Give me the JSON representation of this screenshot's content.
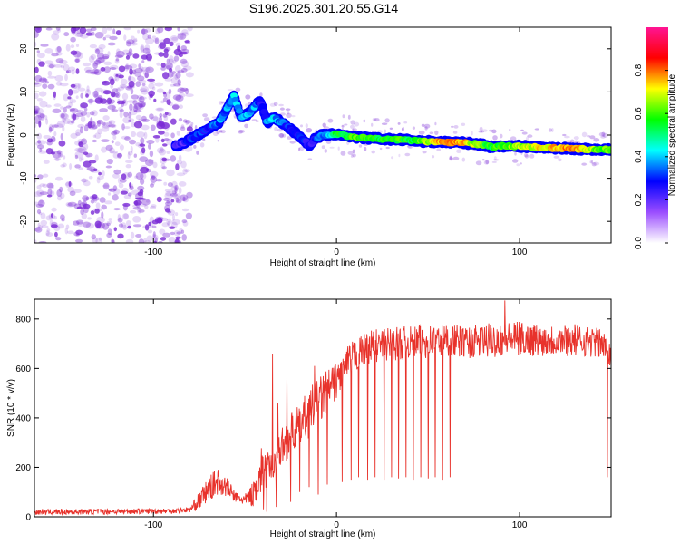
{
  "title": "S196.2025.301.20.55.G14",
  "colors": {
    "snr_line": "#e8322b",
    "ridge_outline": "#0000ff",
    "noise": "#7a2bd6",
    "axis": "#000000"
  },
  "chart_data": [
    {
      "type": "heatmap",
      "name": "spectrogram",
      "xlabel": "Height of straight line (km)",
      "ylabel": "Frequency (Hz)",
      "xlim": [
        -165,
        150
      ],
      "ylim": [
        -25,
        25
      ],
      "x_ticks": [
        -100,
        0,
        100
      ],
      "x_tick_labels": [
        "-100",
        "0",
        "100"
      ],
      "y_ticks": [
        -20,
        -10,
        0,
        10,
        20
      ],
      "y_tick_labels": [
        "-20",
        "-10",
        "0",
        "10",
        "20"
      ],
      "noise_region_x": [
        -165,
        -80
      ],
      "ridge": {
        "x": [
          -88,
          -82,
          -76,
          -70,
          -64,
          -60,
          -56,
          -52,
          -48,
          -44,
          -42,
          -40,
          -38,
          -34,
          -30,
          -27,
          -24,
          -21,
          -18,
          -15,
          -12,
          -8,
          -4,
          0,
          10,
          20,
          30,
          40,
          50,
          60,
          70,
          80,
          85,
          90,
          100,
          110,
          120,
          130,
          140,
          150
        ],
        "y": [
          -2.5,
          -1.5,
          0,
          1.5,
          3,
          6,
          9,
          4,
          5,
          7,
          8,
          6,
          3,
          4,
          3,
          2,
          1,
          0,
          -1,
          -2.5,
          -1,
          0,
          0,
          0.3,
          -0.5,
          -0.8,
          -1,
          -1.2,
          -1.5,
          -1.6,
          -1.8,
          -2.2,
          -2.8,
          -2.5,
          -2.6,
          -2.8,
          -3,
          -3.2,
          -3.3,
          -3.4
        ],
        "amplitude": [
          0.2,
          0.25,
          0.3,
          0.3,
          0.35,
          0.35,
          0.4,
          0.35,
          0.4,
          0.35,
          0.3,
          0.3,
          0.35,
          0.4,
          0.35,
          0.3,
          0.3,
          0.3,
          0.3,
          0.25,
          0.3,
          0.35,
          0.4,
          0.55,
          0.6,
          0.55,
          0.6,
          0.55,
          0.65,
          0.8,
          0.75,
          0.6,
          0.55,
          0.6,
          0.65,
          0.7,
          0.75,
          0.8,
          0.65,
          0.6
        ]
      }
    },
    {
      "type": "colorbar",
      "name": "amplitude-scale",
      "label": "Normalized spectral amplitude",
      "range": [
        0,
        1
      ],
      "ticks": [
        0.0,
        0.2,
        0.4,
        0.6,
        0.8
      ],
      "tick_labels": [
        "0.0",
        "0.2",
        "0.4",
        "0.6",
        "0.8"
      ],
      "stops": [
        "#ffffff",
        "#9b4dff",
        "#0000ff",
        "#00ffff",
        "#00ff00",
        "#ffff00",
        "#ff0000",
        "#ff1493"
      ]
    },
    {
      "type": "line",
      "name": "snr",
      "xlabel": "Height of straight line (km)",
      "ylabel": "SNR (10 * v/v)",
      "xlim": [
        -165,
        150
      ],
      "ylim": [
        0,
        880
      ],
      "x_ticks": [
        -100,
        0,
        100
      ],
      "x_tick_labels": [
        "-100",
        "0",
        "100"
      ],
      "y_ticks": [
        0,
        200,
        400,
        600,
        800
      ],
      "y_tick_labels": [
        "0",
        "200",
        "400",
        "600",
        "800"
      ],
      "envelope": {
        "x": [
          -165,
          -90,
          -80,
          -75,
          -70,
          -65,
          -60,
          -55,
          -50,
          -45,
          -42,
          -40,
          -38,
          -35,
          -33,
          -30,
          -28,
          -25,
          -20,
          -15,
          -10,
          -5,
          0,
          5,
          10,
          15,
          20,
          25,
          30,
          40,
          50,
          60,
          65,
          70,
          80,
          90,
          100,
          110,
          120,
          130,
          140,
          145,
          148,
          150
        ],
        "lower": [
          8,
          12,
          18,
          30,
          60,
          90,
          80,
          55,
          45,
          40,
          70,
          90,
          110,
          150,
          180,
          200,
          220,
          250,
          280,
          320,
          360,
          420,
          480,
          540,
          580,
          610,
          620,
          630,
          630,
          640,
          640,
          645,
          650,
          640,
          640,
          650,
          650,
          650,
          650,
          650,
          645,
          640,
          620,
          600
        ],
        "upper": [
          30,
          35,
          40,
          100,
          160,
          200,
          160,
          100,
          90,
          150,
          260,
          310,
          260,
          260,
          300,
          360,
          380,
          420,
          460,
          520,
          560,
          600,
          620,
          680,
          720,
          740,
          760,
          760,
          770,
          770,
          780,
          780,
          780,
          770,
          780,
          790,
          790,
          780,
          780,
          780,
          770,
          760,
          720,
          700
        ],
        "dips": [
          {
            "x": -45,
            "to": 120
          },
          {
            "x": -40,
            "to": 30
          },
          {
            "x": -38,
            "to": 20
          },
          {
            "x": -33,
            "to": 40
          },
          {
            "x": -25,
            "to": 60
          },
          {
            "x": -20,
            "to": 100
          },
          {
            "x": -15,
            "to": 120
          },
          {
            "x": -10,
            "to": 90
          },
          {
            "x": -5,
            "to": 130
          },
          {
            "x": 3,
            "to": 140
          },
          {
            "x": 8,
            "to": 150
          },
          {
            "x": 12,
            "to": 160
          },
          {
            "x": 17,
            "to": 150
          },
          {
            "x": 21,
            "to": 160
          },
          {
            "x": 26,
            "to": 150
          },
          {
            "x": 30,
            "to": 160
          },
          {
            "x": 34,
            "to": 155
          },
          {
            "x": 38,
            "to": 160
          },
          {
            "x": 42,
            "to": 150
          },
          {
            "x": 46,
            "to": 160
          },
          {
            "x": 50,
            "to": 155
          },
          {
            "x": 54,
            "to": 160
          },
          {
            "x": 58,
            "to": 150
          },
          {
            "x": 62,
            "to": 160
          },
          {
            "x": 148,
            "to": 160
          }
        ],
        "peaks": [
          {
            "x": -35,
            "to": 660
          },
          {
            "x": -32,
            "to": 460
          },
          {
            "x": -27,
            "to": 600
          },
          {
            "x": -12,
            "to": 610
          },
          {
            "x": 92,
            "to": 875
          },
          {
            "x": 149,
            "to": 700
          }
        ]
      }
    }
  ]
}
